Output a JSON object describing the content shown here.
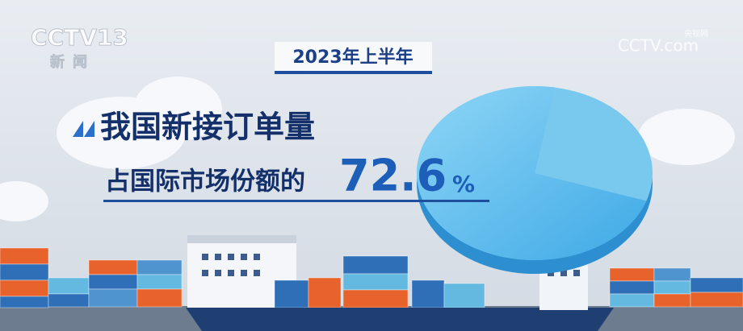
{
  "logo": {
    "channel": "CCTV13",
    "name": "新闻"
  },
  "watermark": {
    "name": "央视网",
    "site": "CCTV.com"
  },
  "period": "2023年上半年",
  "headline": "我国新接订单量",
  "subline": "占国际市场份额的",
  "share": {
    "value": 72.6,
    "unit": "%"
  }
}
